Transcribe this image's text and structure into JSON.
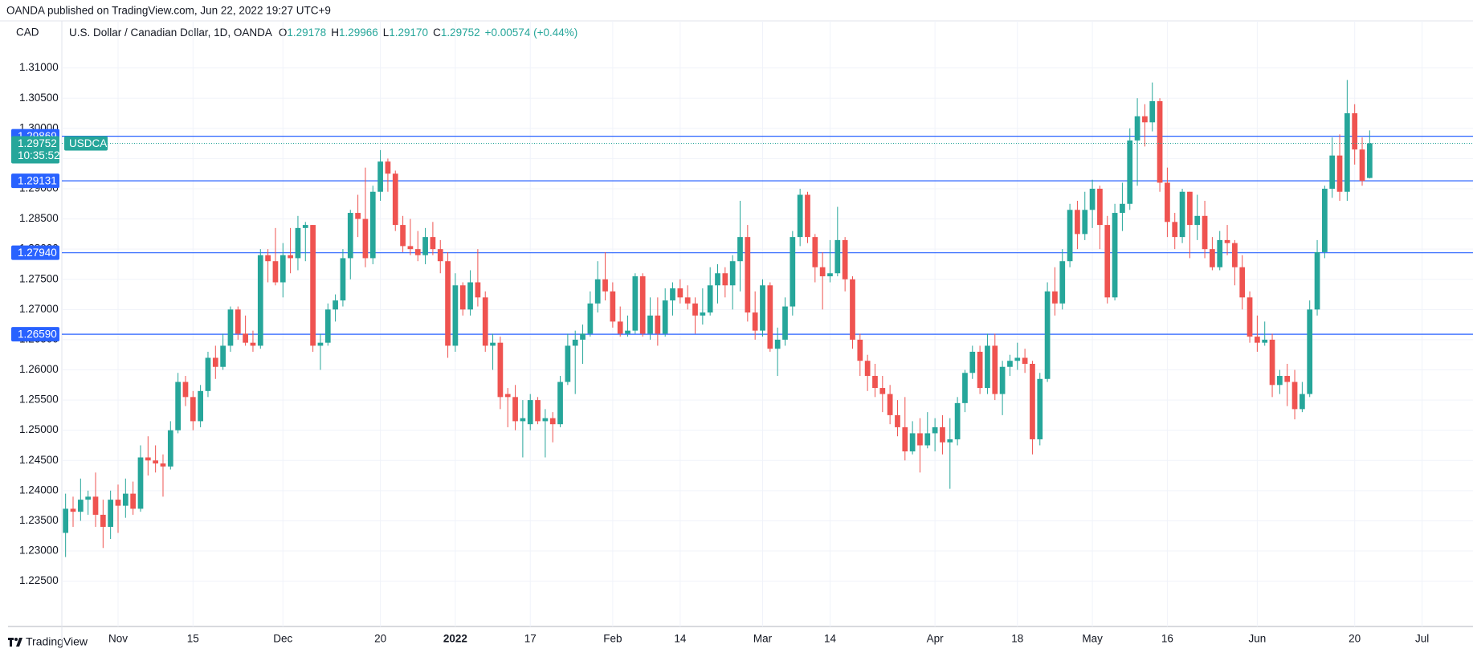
{
  "header": "OANDA published on TradingView.com, Jun 22, 2022 19:27 UTC+9",
  "footer": "TradingView",
  "chart_data": {
    "type": "candlestick",
    "currency": "CAD",
    "title": "U.S. Dollar / Canadian Dollar, 1D, OANDA",
    "legend": [
      {
        "key": "O",
        "value": "1.29178"
      },
      {
        "key": "H",
        "value": "1.29966"
      },
      {
        "key": "L",
        "value": "1.29170"
      },
      {
        "key": "C",
        "value": "1.29752"
      }
    ],
    "change": "+0.00574 (+0.44%)",
    "symbol": "USDCAD",
    "countdown": "10:35:52",
    "up_color": "#26a69a",
    "down_color": "#ef5350",
    "open": [
      1.233,
      1.237,
      1.2365,
      1.2385,
      1.239,
      1.236,
      1.234,
      1.2385,
      1.2375,
      1.2395,
      1.237,
      1.2455,
      1.245,
      1.2445,
      1.244,
      1.25,
      1.258,
      1.2555,
      1.2515,
      1.2565,
      1.262,
      1.2605,
      1.264,
      1.27,
      1.266,
      1.2645,
      1.264,
      1.279,
      1.278,
      1.2745,
      1.279,
      1.2785,
      1.2835,
      1.284,
      1.264,
      1.2645,
      1.27,
      1.2715,
      1.2785,
      1.286,
      1.285,
      1.2785,
      1.2895,
      1.2945,
      1.2925,
      1.284,
      1.2805,
      1.28,
      1.279,
      1.282,
      1.28,
      1.278,
      1.264,
      1.274,
      1.27,
      1.2745,
      1.272,
      1.264,
      1.2645,
      1.256,
      1.2555,
      1.2515,
      1.251,
      1.255,
      1.2515,
      1.252,
      1.251,
      1.258,
      1.264,
      1.265,
      1.266,
      1.271,
      1.275,
      1.273,
      1.268,
      1.266,
      1.2665,
      1.2755,
      1.266,
      1.269,
      1.266,
      1.2715,
      1.2735,
      1.272,
      1.271,
      1.269,
      1.2695,
      1.274,
      1.276,
      1.274,
      1.278,
      1.282,
      1.2695,
      1.2665,
      1.274,
      1.2635,
      1.265,
      1.2705,
      1.282,
      1.289,
      1.282,
      1.277,
      1.2755,
      1.276,
      1.2815,
      1.275,
      1.265,
      1.2615,
      1.259,
      1.257,
      1.256,
      1.2525,
      1.2505,
      1.2465,
      1.2495,
      1.2475,
      1.2495,
      1.2505,
      1.248,
      1.2485,
      1.2545,
      1.2595,
      1.263,
      1.257,
      1.264,
      1.256,
      1.2605,
      1.2615,
      1.262,
      1.261,
      1.2485,
      1.2585,
      1.273,
      1.271,
      1.278,
      1.2865,
      1.2825,
      1.2865,
      1.29,
      1.284,
      1.272,
      1.286,
      1.2875,
      1.298,
      1.302,
      1.301,
      1.3045,
      1.291,
      1.2845,
      1.282,
      1.2895,
      1.284,
      1.2855,
      1.28,
      1.277,
      1.2815,
      1.281,
      1.277,
      1.272,
      1.2655,
      1.2645,
      1.265,
      1.2575,
      1.259,
      1.258,
      1.2535,
      1.256,
      1.27,
      1.2795,
      1.29,
      1.2955,
      1.2895,
      1.3025,
      1.2965,
      1.29178
    ],
    "high": [
      1.2395,
      1.239,
      1.242,
      1.24,
      1.243,
      1.2385,
      1.24,
      1.241,
      1.242,
      1.2415,
      1.2475,
      1.249,
      1.2475,
      1.246,
      1.2515,
      1.2595,
      1.259,
      1.2565,
      1.2575,
      1.263,
      1.264,
      1.266,
      1.2705,
      1.2705,
      1.269,
      1.2665,
      1.28,
      1.28,
      1.2835,
      1.281,
      1.2835,
      1.2855,
      1.2845,
      1.284,
      1.266,
      1.271,
      1.2725,
      1.28,
      1.2865,
      1.289,
      1.2935,
      1.2905,
      1.2964,
      1.295,
      1.293,
      1.2855,
      1.285,
      1.283,
      1.2835,
      1.2845,
      1.2815,
      1.2795,
      1.276,
      1.2745,
      1.2765,
      1.28,
      1.273,
      1.266,
      1.2655,
      1.257,
      1.2575,
      1.255,
      1.256,
      1.2555,
      1.2535,
      1.253,
      1.259,
      1.266,
      1.2665,
      1.2675,
      1.273,
      1.278,
      1.2795,
      1.2745,
      1.2705,
      1.269,
      1.276,
      1.276,
      1.272,
      1.272,
      1.2735,
      1.2745,
      1.275,
      1.274,
      1.272,
      1.2735,
      1.277,
      1.2775,
      1.277,
      1.279,
      1.288,
      1.284,
      1.273,
      1.275,
      1.2745,
      1.267,
      1.272,
      1.283,
      1.29,
      1.2895,
      1.2825,
      1.2795,
      1.2815,
      1.287,
      1.282,
      1.2755,
      1.266,
      1.2625,
      1.261,
      1.259,
      1.2575,
      1.255,
      1.2555,
      1.2515,
      1.252,
      1.253,
      1.252,
      1.2525,
      1.252,
      1.2555,
      1.26,
      1.264,
      1.264,
      1.266,
      1.266,
      1.2615,
      1.2625,
      1.2645,
      1.2635,
      1.2615,
      1.2595,
      1.2745,
      1.277,
      1.28,
      1.2875,
      1.288,
      1.2895,
      1.2915,
      1.2905,
      1.2855,
      1.2875,
      1.291,
      1.3,
      1.305,
      1.304,
      1.3076,
      1.305,
      1.2935,
      1.286,
      1.29,
      1.2895,
      1.289,
      1.288,
      1.282,
      1.283,
      1.284,
      1.2815,
      1.279,
      1.273,
      1.269,
      1.268,
      1.266,
      1.26,
      1.261,
      1.26,
      1.258,
      1.2715,
      1.2815,
      1.2905,
      1.2985,
      1.299,
      1.308,
      1.304,
      1.2985,
      1.29966
    ],
    "low": [
      1.229,
      1.234,
      1.235,
      1.236,
      1.234,
      1.2305,
      1.232,
      1.233,
      1.2355,
      1.236,
      1.2365,
      1.2425,
      1.243,
      1.239,
      1.2435,
      1.2495,
      1.254,
      1.25,
      1.2505,
      1.2555,
      1.2585,
      1.26,
      1.263,
      1.265,
      1.264,
      1.263,
      1.2635,
      1.2745,
      1.274,
      1.272,
      1.276,
      1.2765,
      1.278,
      1.263,
      1.26,
      1.264,
      1.268,
      1.2705,
      1.275,
      1.282,
      1.277,
      1.2775,
      1.288,
      1.2895,
      1.283,
      1.2795,
      1.279,
      1.278,
      1.2775,
      1.279,
      1.276,
      1.262,
      1.263,
      1.269,
      1.269,
      1.2705,
      1.263,
      1.26,
      1.2535,
      1.2505,
      1.25,
      1.2455,
      1.25,
      1.251,
      1.2455,
      1.248,
      1.2505,
      1.2575,
      1.256,
      1.261,
      1.2655,
      1.2695,
      1.2715,
      1.267,
      1.2655,
      1.2655,
      1.266,
      1.2655,
      1.265,
      1.264,
      1.2655,
      1.269,
      1.271,
      1.27,
      1.266,
      1.2675,
      1.269,
      1.271,
      1.272,
      1.27,
      1.273,
      1.268,
      1.265,
      1.2655,
      1.263,
      1.259,
      1.264,
      1.269,
      1.2805,
      1.281,
      1.2745,
      1.27,
      1.2745,
      1.2755,
      1.273,
      1.2635,
      1.259,
      1.2565,
      1.2555,
      1.253,
      1.251,
      1.249,
      1.245,
      1.246,
      1.243,
      1.247,
      1.2465,
      1.246,
      1.2403,
      1.2475,
      1.253,
      1.2585,
      1.256,
      1.256,
      1.255,
      1.2525,
      1.259,
      1.26,
      1.2595,
      1.246,
      1.2475,
      1.258,
      1.269,
      1.27,
      1.277,
      1.28,
      1.2815,
      1.2835,
      1.28,
      1.271,
      1.2715,
      1.283,
      1.2865,
      1.2905,
      1.297,
      1.2995,
      1.2895,
      1.282,
      1.28,
      1.281,
      1.2785,
      1.2815,
      1.2785,
      1.2765,
      1.2765,
      1.279,
      1.274,
      1.27,
      1.2645,
      1.263,
      1.264,
      1.2555,
      1.256,
      1.254,
      1.2518,
      1.253,
      1.2555,
      1.269,
      1.2785,
      1.2885,
      1.288,
      1.288,
      1.294,
      1.2905,
      1.2917
    ],
    "close": [
      1.237,
      1.2365,
      1.2385,
      1.239,
      1.236,
      1.234,
      1.2385,
      1.2375,
      1.2395,
      1.237,
      1.2455,
      1.245,
      1.2445,
      1.244,
      1.25,
      1.258,
      1.2555,
      1.2515,
      1.2565,
      1.262,
      1.2605,
      1.264,
      1.27,
      1.266,
      1.2645,
      1.264,
      1.279,
      1.278,
      1.2745,
      1.279,
      1.2785,
      1.2835,
      1.284,
      1.264,
      1.2645,
      1.27,
      1.2715,
      1.2785,
      1.286,
      1.285,
      1.2785,
      1.2895,
      1.2945,
      1.2925,
      1.284,
      1.2805,
      1.28,
      1.279,
      1.282,
      1.28,
      1.278,
      1.264,
      1.274,
      1.27,
      1.2745,
      1.272,
      1.264,
      1.2645,
      1.2555,
      1.2555,
      1.2515,
      1.252,
      1.255,
      1.2515,
      1.252,
      1.251,
      1.258,
      1.264,
      1.265,
      1.266,
      1.271,
      1.275,
      1.273,
      1.268,
      1.266,
      1.2665,
      1.2755,
      1.266,
      1.269,
      1.266,
      1.2715,
      1.2735,
      1.272,
      1.271,
      1.269,
      1.2695,
      1.274,
      1.276,
      1.274,
      1.278,
      1.282,
      1.2695,
      1.2665,
      1.274,
      1.2635,
      1.265,
      1.2705,
      1.282,
      1.289,
      1.282,
      1.277,
      1.2755,
      1.276,
      1.2815,
      1.275,
      1.265,
      1.2615,
      1.259,
      1.257,
      1.256,
      1.2525,
      1.2505,
      1.2465,
      1.2495,
      1.2475,
      1.2495,
      1.2505,
      1.248,
      1.2485,
      1.2545,
      1.2595,
      1.263,
      1.257,
      1.264,
      1.256,
      1.2605,
      1.2615,
      1.262,
      1.261,
      1.2485,
      1.2585,
      1.273,
      1.271,
      1.278,
      1.2865,
      1.2825,
      1.2865,
      1.29,
      1.284,
      1.272,
      1.286,
      1.2875,
      1.298,
      1.302,
      1.301,
      1.3045,
      1.291,
      1.2845,
      1.282,
      1.2895,
      1.284,
      1.2855,
      1.28,
      1.277,
      1.2815,
      1.281,
      1.277,
      1.272,
      1.2655,
      1.2645,
      1.265,
      1.2575,
      1.259,
      1.258,
      1.2535,
      1.256,
      1.27,
      1.2795,
      1.29,
      1.2955,
      1.2895,
      1.3025,
      1.2965,
      1.2913,
      1.29752
    ],
    "levels": [
      1.29869,
      1.29131,
      {
        "value": 1.2794,
        "label": "1.27940"
      },
      {
        "value": 1.2659,
        "label": "1.26590"
      }
    ],
    "level_color": "#2962ff",
    "xlim": [
      -0.5,
      186.5
    ],
    "xticks": [
      {
        "value": 7,
        "label": "Nov"
      },
      {
        "value": 17,
        "label": "15"
      },
      {
        "value": 29,
        "label": "Dec"
      },
      {
        "value": 42,
        "label": "20"
      },
      {
        "value": 52,
        "label": "2022"
      },
      {
        "value": 62,
        "label": "17"
      },
      {
        "value": 73,
        "label": "Feb"
      },
      {
        "value": 82,
        "label": "14"
      },
      {
        "value": 93,
        "label": "Mar"
      },
      {
        "value": 102,
        "label": "14"
      },
      {
        "value": 116,
        "label": "Apr"
      },
      {
        "value": 127,
        "label": "18"
      },
      {
        "value": 137,
        "label": "May"
      },
      {
        "value": 147,
        "label": "16"
      },
      {
        "value": 159,
        "label": "Jun"
      },
      {
        "value": 172,
        "label": "20"
      },
      {
        "value": 181,
        "label": "Jul"
      }
    ],
    "ylim": [
      1.2175,
      1.3178
    ],
    "yticks": [
      {
        "value": 1.225,
        "label": "1.22500"
      },
      {
        "value": 1.23,
        "label": "1.23000"
      },
      {
        "value": 1.235,
        "label": "1.23500"
      },
      {
        "value": 1.24,
        "label": "1.24000"
      },
      {
        "value": 1.245,
        "label": "1.24500"
      },
      {
        "value": 1.25,
        "label": "1.25000"
      },
      {
        "value": 1.255,
        "label": "1.25500"
      },
      {
        "value": 1.26,
        "label": "1.26000"
      },
      {
        "value": 1.265,
        "label": "1.26500"
      },
      {
        "value": 1.27,
        "label": "1.27000"
      },
      {
        "value": 1.275,
        "label": "1.27500"
      },
      {
        "value": 1.28,
        "label": "1.28000"
      },
      {
        "value": 1.285,
        "label": "1.28500"
      },
      {
        "value": 1.29,
        "label": "1.29000"
      },
      {
        "value": 1.295,
        "label": "1.29500"
      },
      {
        "value": 1.3,
        "label": "1.30000"
      },
      {
        "value": 1.305,
        "label": "1.30500"
      },
      {
        "value": 1.31,
        "label": "1.31000"
      }
    ],
    "grid": true
  }
}
